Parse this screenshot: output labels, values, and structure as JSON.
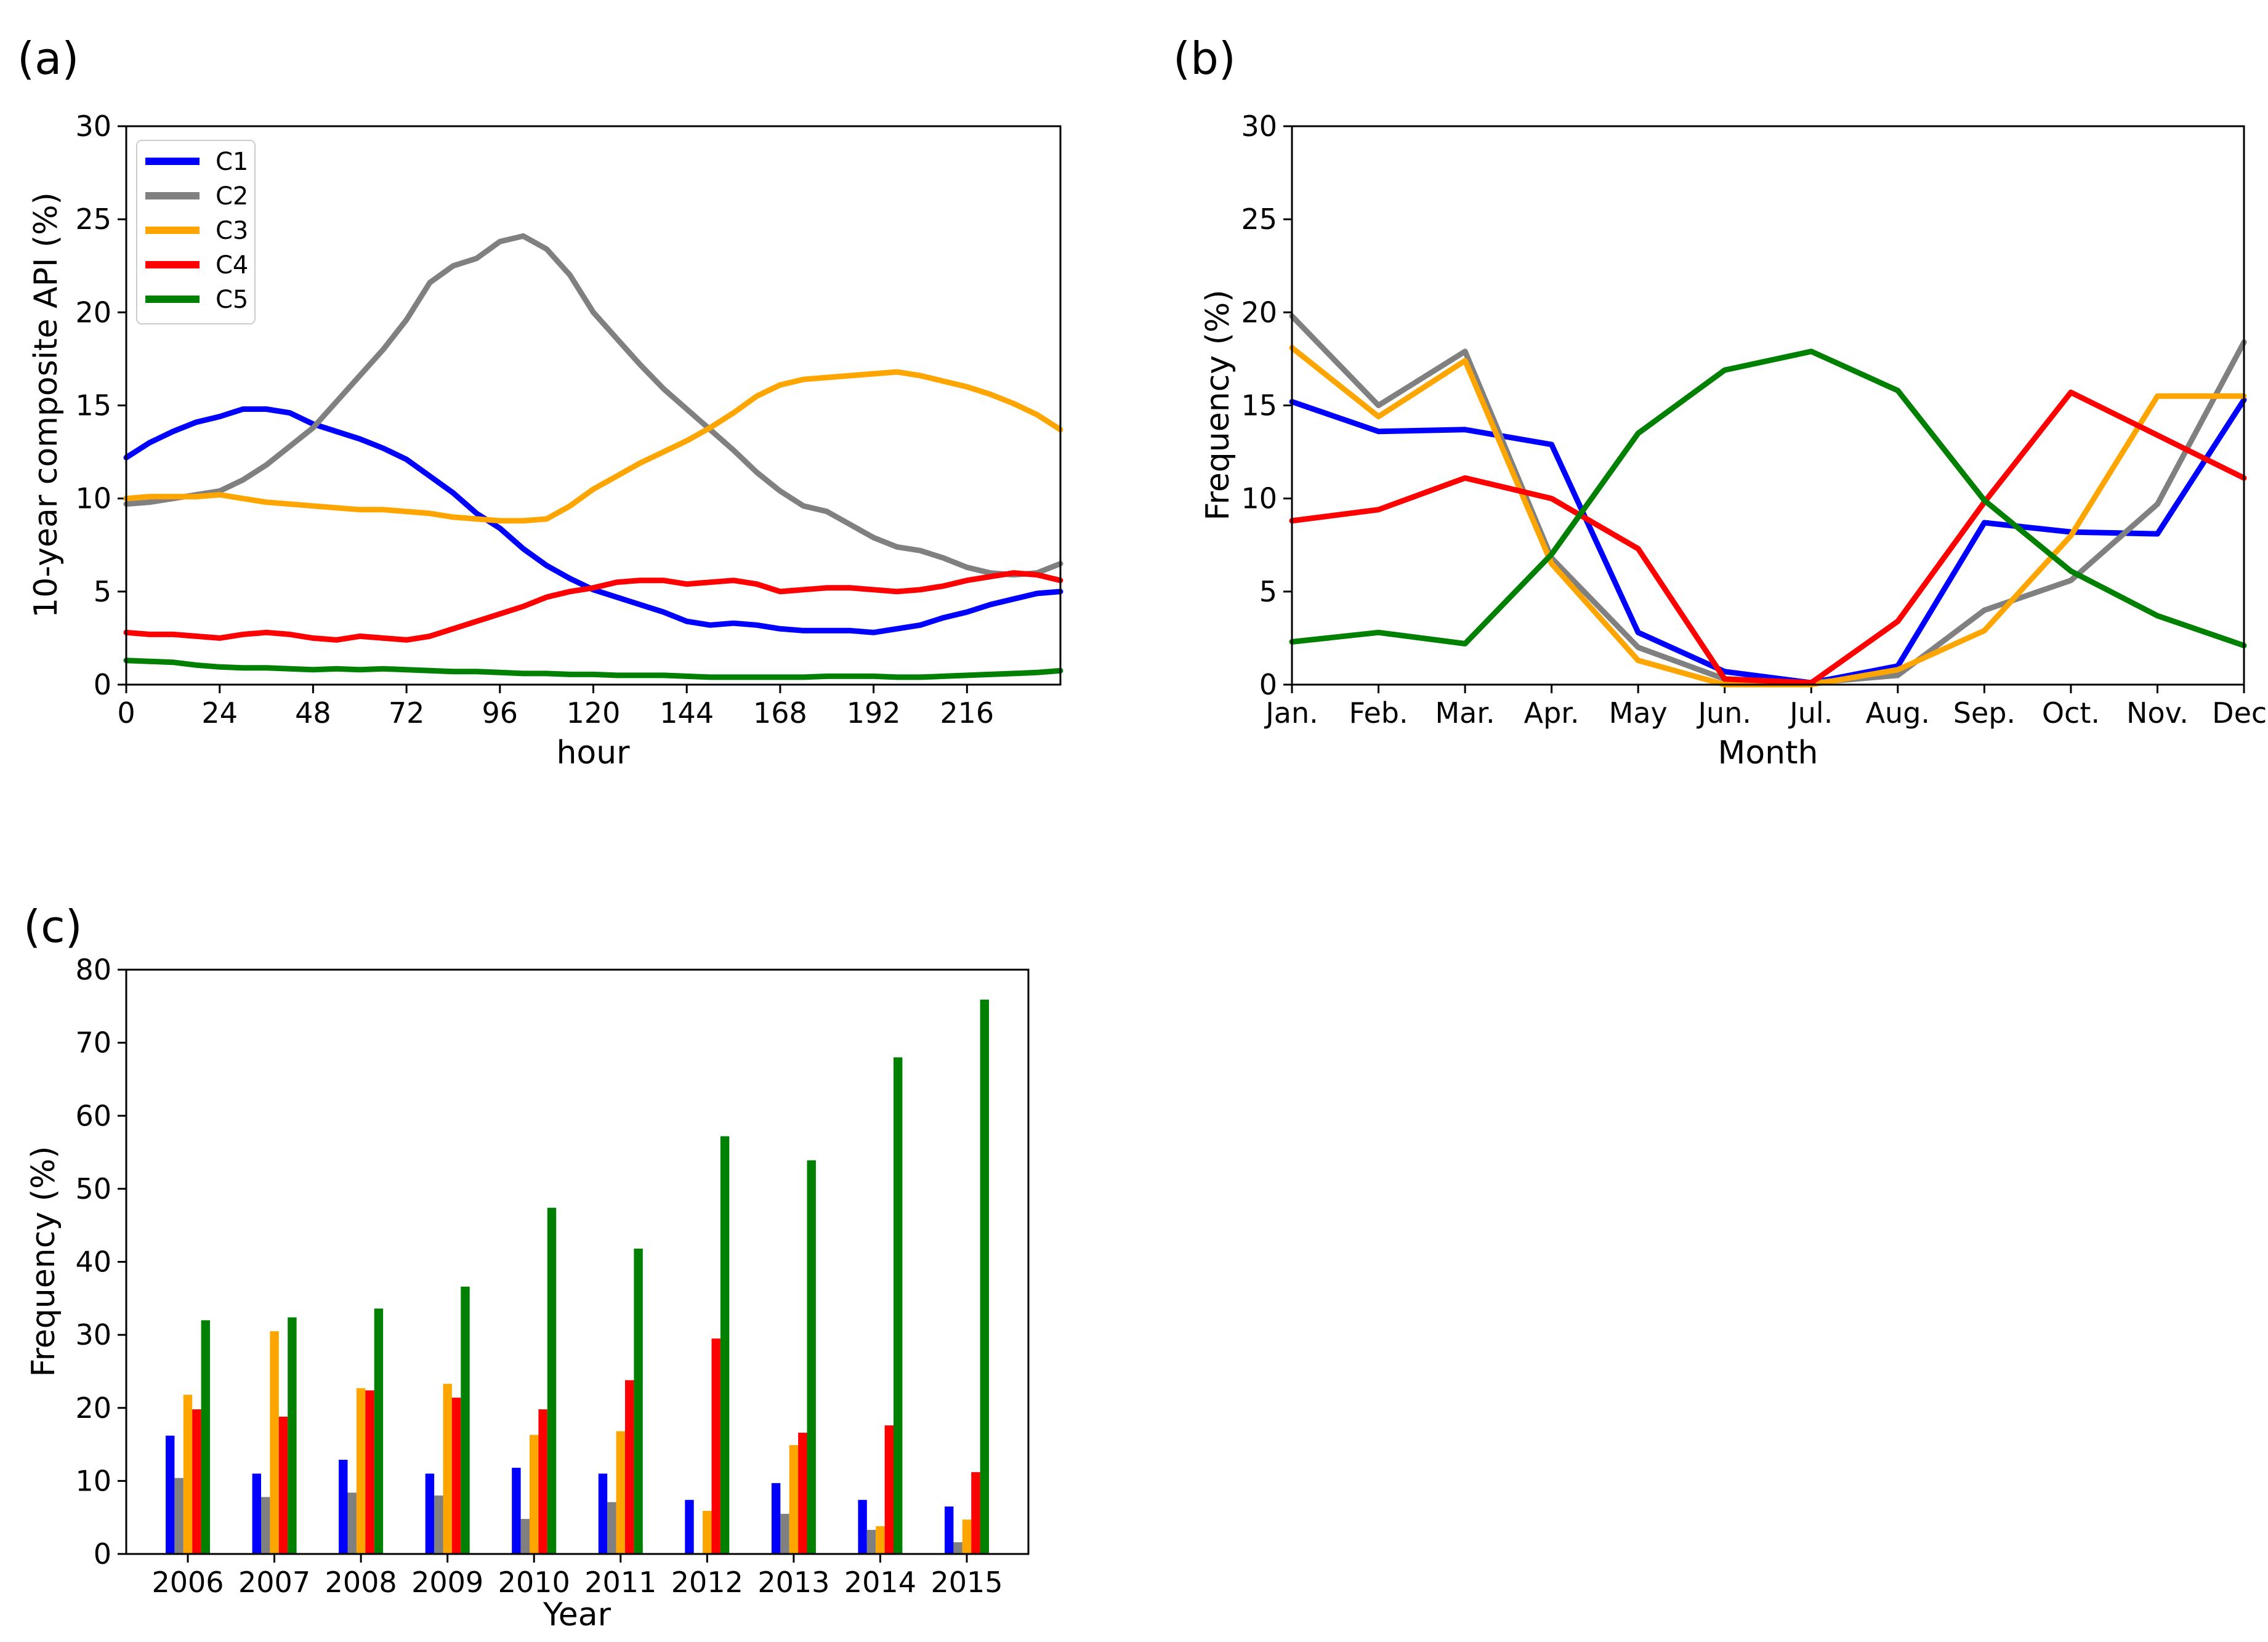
{
  "figure_background": "#ffffff",
  "chart_data": [
    {
      "panel_label": "(a)",
      "type": "line",
      "xlabel": "hour",
      "ylabel": "10-year composite API (%)",
      "xlim": [
        0,
        240
      ],
      "ylim": [
        0,
        30
      ],
      "xticks": [
        0,
        24,
        48,
        72,
        96,
        120,
        144,
        168,
        192,
        216
      ],
      "yticks": [
        0,
        5,
        10,
        15,
        20,
        25,
        30
      ],
      "grid": false,
      "legend": {
        "visible": true,
        "position": "upper-left",
        "entries": [
          "C1",
          "C2",
          "C3",
          "C4",
          "C5"
        ]
      },
      "x": [
        0,
        6,
        12,
        18,
        24,
        30,
        36,
        42,
        48,
        54,
        60,
        66,
        72,
        78,
        84,
        90,
        96,
        102,
        108,
        114,
        120,
        126,
        132,
        138,
        144,
        150,
        156,
        162,
        168,
        174,
        180,
        186,
        192,
        198,
        204,
        210,
        216,
        222,
        228,
        234,
        240
      ],
      "series": [
        {
          "name": "C1",
          "color": "#0000ff",
          "y": [
            12.2,
            13.0,
            13.6,
            14.1,
            14.4,
            14.8,
            14.8,
            14.6,
            14.0,
            13.6,
            13.2,
            12.7,
            12.1,
            11.2,
            10.3,
            9.2,
            8.4,
            7.3,
            6.4,
            5.7,
            5.1,
            4.7,
            4.3,
            3.9,
            3.4,
            3.2,
            3.3,
            3.2,
            3.0,
            2.9,
            2.9,
            2.9,
            2.8,
            3.0,
            3.2,
            3.6,
            3.9,
            4.3,
            4.6,
            4.9,
            5.0
          ]
        },
        {
          "name": "C2",
          "color": "#808080",
          "y": [
            9.7,
            9.8,
            10.0,
            10.2,
            10.4,
            11.0,
            11.8,
            12.8,
            13.8,
            15.2,
            16.6,
            18.0,
            19.6,
            21.6,
            22.5,
            22.9,
            23.8,
            24.1,
            23.4,
            22.0,
            20.0,
            18.6,
            17.2,
            15.9,
            14.8,
            13.7,
            12.6,
            11.4,
            10.4,
            9.6,
            9.3,
            8.6,
            7.9,
            7.4,
            7.2,
            6.8,
            6.3,
            6.0,
            5.9,
            6.0,
            6.5
          ]
        },
        {
          "name": "C3",
          "color": "#ffa500",
          "y": [
            10.0,
            10.1,
            10.1,
            10.1,
            10.2,
            10.0,
            9.8,
            9.7,
            9.6,
            9.5,
            9.4,
            9.4,
            9.3,
            9.2,
            9.0,
            8.9,
            8.8,
            8.8,
            8.9,
            9.6,
            10.5,
            11.2,
            11.9,
            12.5,
            13.1,
            13.8,
            14.6,
            15.5,
            16.1,
            16.4,
            16.5,
            16.6,
            16.7,
            16.8,
            16.6,
            16.3,
            16.0,
            15.6,
            15.1,
            14.5,
            13.7
          ]
        },
        {
          "name": "C4",
          "color": "#ff0000",
          "y": [
            2.8,
            2.7,
            2.7,
            2.6,
            2.5,
            2.7,
            2.8,
            2.7,
            2.5,
            2.4,
            2.6,
            2.5,
            2.4,
            2.6,
            3.0,
            3.4,
            3.8,
            4.2,
            4.7,
            5.0,
            5.2,
            5.5,
            5.6,
            5.6,
            5.4,
            5.5,
            5.6,
            5.4,
            5.0,
            5.1,
            5.2,
            5.2,
            5.1,
            5.0,
            5.1,
            5.3,
            5.6,
            5.8,
            6.0,
            5.9,
            5.6
          ]
        },
        {
          "name": "C5",
          "color": "#008000",
          "y": [
            1.3,
            1.25,
            1.2,
            1.05,
            0.95,
            0.9,
            0.9,
            0.85,
            0.8,
            0.85,
            0.8,
            0.85,
            0.8,
            0.75,
            0.7,
            0.7,
            0.65,
            0.6,
            0.6,
            0.55,
            0.55,
            0.5,
            0.5,
            0.5,
            0.45,
            0.4,
            0.4,
            0.4,
            0.4,
            0.4,
            0.45,
            0.45,
            0.45,
            0.4,
            0.4,
            0.45,
            0.5,
            0.55,
            0.6,
            0.65,
            0.75
          ]
        }
      ]
    },
    {
      "panel_label": "(b)",
      "type": "line",
      "xlabel": "Month",
      "ylabel": "Frequency (%)",
      "categories": [
        "Jan.",
        "Feb.",
        "Mar.",
        "Apr.",
        "May",
        "Jun.",
        "Jul.",
        "Aug.",
        "Sep.",
        "Oct.",
        "Nov.",
        "Dec."
      ],
      "ylim": [
        0,
        30
      ],
      "yticks": [
        0,
        5,
        10,
        15,
        20,
        25,
        30
      ],
      "grid": false,
      "legend": {
        "visible": false
      },
      "series": [
        {
          "name": "C1",
          "color": "#0000ff",
          "values": [
            15.2,
            13.6,
            13.7,
            12.9,
            2.8,
            0.7,
            0.1,
            1.0,
            8.7,
            8.2,
            8.1,
            15.3
          ]
        },
        {
          "name": "C2",
          "color": "#808080",
          "values": [
            19.8,
            15.0,
            17.9,
            6.8,
            2.0,
            0.3,
            0.1,
            0.5,
            4.0,
            5.6,
            9.7,
            18.4
          ]
        },
        {
          "name": "C3",
          "color": "#ffa500",
          "values": [
            18.1,
            14.4,
            17.4,
            6.5,
            1.3,
            0.0,
            0.0,
            0.8,
            2.9,
            8.0,
            15.5,
            15.5
          ]
        },
        {
          "name": "C4",
          "color": "#ff0000",
          "values": [
            8.8,
            9.4,
            11.1,
            10.0,
            7.3,
            0.3,
            0.1,
            3.4,
            9.8,
            15.7,
            13.4,
            11.1
          ]
        },
        {
          "name": "C5",
          "color": "#008000",
          "values": [
            2.3,
            2.8,
            2.2,
            7.0,
            13.5,
            16.9,
            17.9,
            15.8,
            9.9,
            6.1,
            3.7,
            2.1
          ]
        }
      ]
    },
    {
      "panel_label": "(c)",
      "type": "bar",
      "xlabel": "Year",
      "ylabel": "Frequency (%)",
      "categories": [
        "2006",
        "2007",
        "2008",
        "2009",
        "2010",
        "2011",
        "2012",
        "2013",
        "2014",
        "2015"
      ],
      "ylim": [
        0,
        80
      ],
      "yticks": [
        0,
        10,
        20,
        30,
        40,
        50,
        60,
        70,
        80
      ],
      "grid": false,
      "legend": {
        "visible": false
      },
      "series": [
        {
          "name": "C1",
          "color": "#0000ff",
          "values": [
            16.2,
            11.0,
            12.9,
            11.0,
            11.8,
            11.0,
            7.4,
            9.7,
            7.4,
            6.5
          ]
        },
        {
          "name": "C2",
          "color": "#808080",
          "values": [
            10.4,
            7.8,
            8.4,
            8.0,
            4.8,
            7.1,
            0.0,
            5.5,
            3.3,
            1.6
          ]
        },
        {
          "name": "C3",
          "color": "#ffa500",
          "values": [
            21.8,
            30.5,
            22.7,
            23.3,
            16.3,
            16.8,
            5.9,
            14.9,
            3.8,
            4.7
          ]
        },
        {
          "name": "C4",
          "color": "#ff0000",
          "values": [
            19.8,
            18.8,
            22.4,
            21.4,
            19.8,
            23.8,
            29.5,
            16.6,
            17.6,
            11.2
          ]
        },
        {
          "name": "C5",
          "color": "#008000",
          "values": [
            32.0,
            32.4,
            33.6,
            36.6,
            47.4,
            41.8,
            57.2,
            53.9,
            68.0,
            75.9
          ]
        }
      ]
    }
  ]
}
